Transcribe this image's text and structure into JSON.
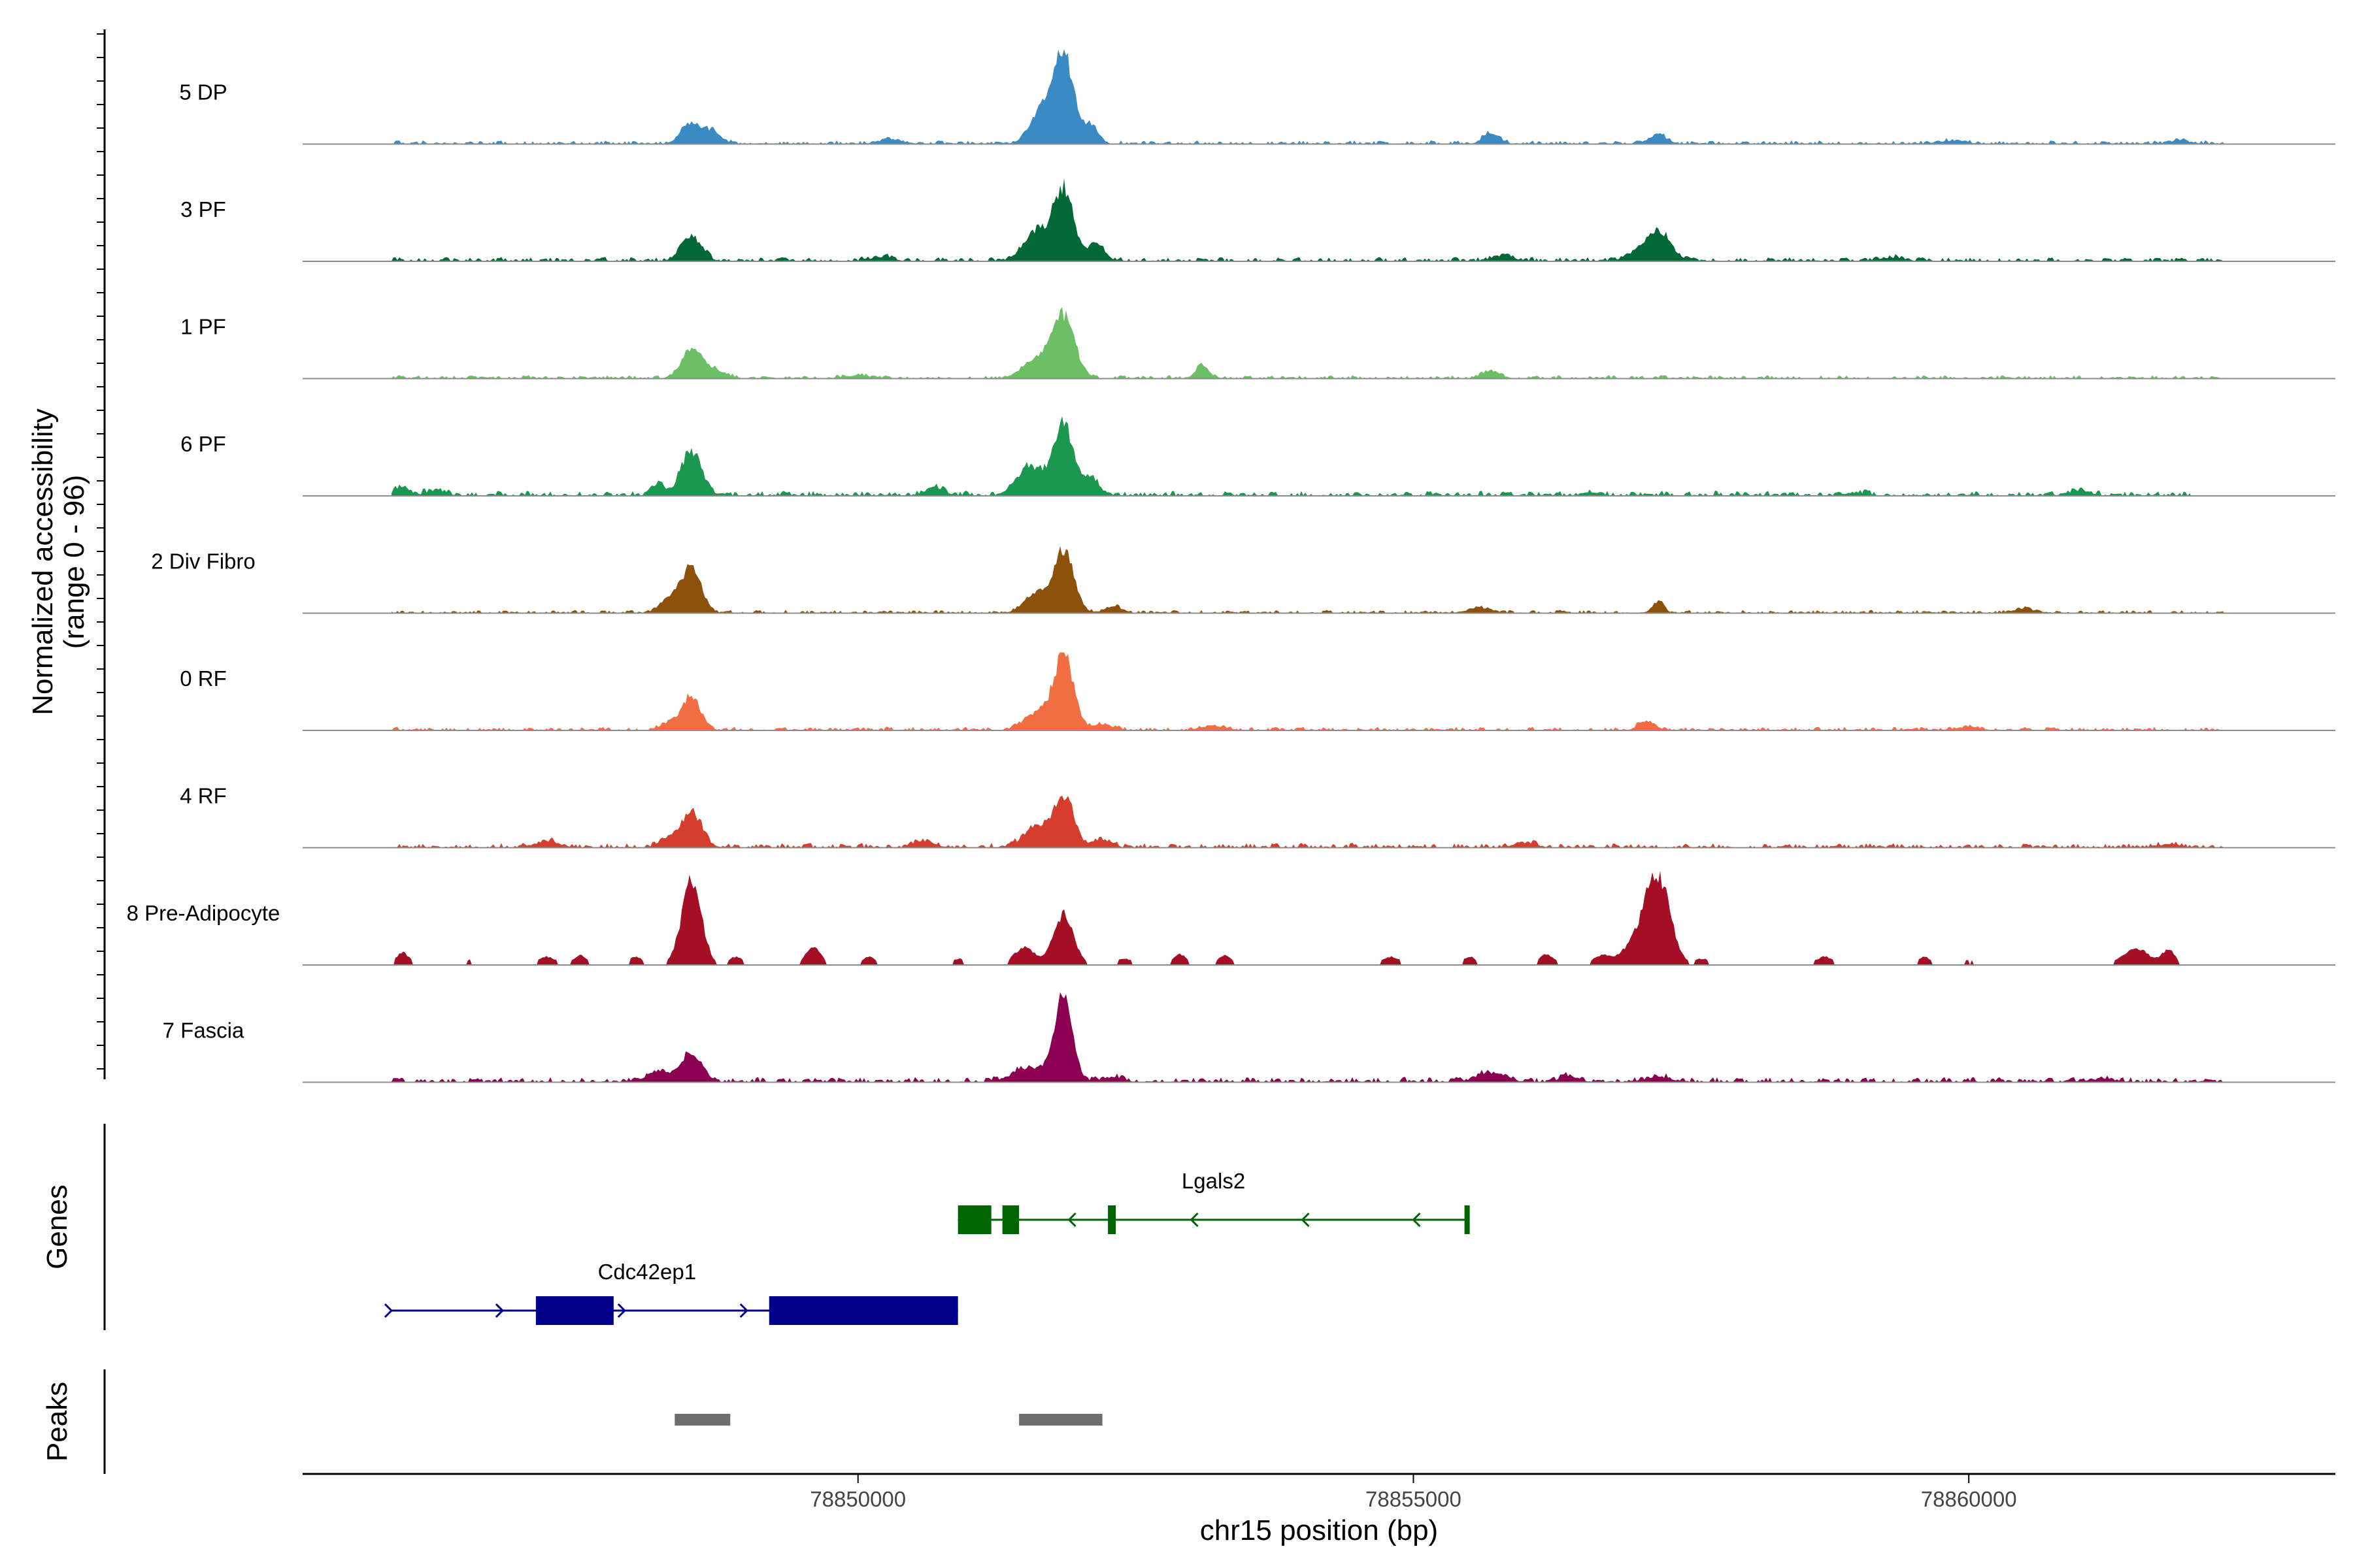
{
  "chart_data": {
    "type": "area",
    "title": "",
    "region": {
      "chrom": "chr15",
      "start": 78845000,
      "end": 78863300
    },
    "xlabel": "chr15 position (bp)",
    "xticks": [
      78850000,
      78855000,
      78860000
    ],
    "xtick_labels": [
      "78850000",
      "78855000",
      "78860000"
    ],
    "ylabel_line1": "Normalized accessibility",
    "ylabel_line2": "(range 0 - 96)",
    "ylim": [
      0,
      96
    ],
    "grid": false,
    "tracks_label": "Genes",
    "peaks_label": "Peaks",
    "series": [
      {
        "name": "5 DP",
        "color": "#3a8ac4",
        "background": 1.8,
        "x_extent": [
          78845800,
          78862300
        ],
        "peaks": [
          [
            78848500,
            20,
            90
          ],
          [
            78848700,
            11,
            70
          ],
          [
            78851850,
            88,
            90
          ],
          [
            78851650,
            30,
            100
          ],
          [
            78852100,
            18,
            60
          ],
          [
            78850300,
            4,
            100
          ],
          [
            78855700,
            11,
            70
          ],
          [
            78857200,
            9,
            80
          ],
          [
            78859850,
            3,
            120
          ],
          [
            78861900,
            3,
            100
          ]
        ]
      },
      {
        "name": "3 PF",
        "color": "#016837",
        "background": 2.2,
        "x_extent": [
          78845800,
          78862300
        ],
        "peaks": [
          [
            78848500,
            24,
            90
          ],
          [
            78851850,
            70,
            90
          ],
          [
            78851600,
            28,
            110
          ],
          [
            78852150,
            16,
            70
          ],
          [
            78850200,
            4,
            100
          ],
          [
            78855800,
            5,
            100
          ],
          [
            78857200,
            28,
            110
          ],
          [
            78857000,
            6,
            100
          ],
          [
            78859300,
            3,
            120
          ]
        ]
      },
      {
        "name": "1 PF",
        "color": "#6cbf65",
        "background": 1.8,
        "x_extent": [
          78845800,
          78862300
        ],
        "peaks": [
          [
            78848500,
            28,
            90
          ],
          [
            78848700,
            8,
            100
          ],
          [
            78851850,
            60,
            100
          ],
          [
            78851600,
            18,
            120
          ],
          [
            78853100,
            12,
            60
          ],
          [
            78855700,
            7,
            80
          ],
          [
            78850000,
            3,
            120
          ]
        ]
      },
      {
        "name": "6 PF",
        "color": "#1c9750",
        "background": 2.6,
        "x_extent": [
          78845800,
          78862000
        ],
        "peaks": [
          [
            78848500,
            44,
            90
          ],
          [
            78848200,
            10,
            60
          ],
          [
            78851850,
            70,
            90
          ],
          [
            78851550,
            28,
            120
          ],
          [
            78852100,
            16,
            70
          ],
          [
            78845900,
            8,
            60
          ],
          [
            78846200,
            5,
            80
          ],
          [
            78850700,
            8,
            80
          ],
          [
            78856600,
            3,
            80
          ],
          [
            78859000,
            3,
            80
          ],
          [
            78861000,
            5,
            80
          ]
        ]
      },
      {
        "name": "2 Div Fibro",
        "color": "#8c510a",
        "background": 1.6,
        "x_extent": [
          78845800,
          78862300
        ],
        "peaks": [
          [
            78848500,
            44,
            90
          ],
          [
            78848300,
            14,
            80
          ],
          [
            78851850,
            60,
            90
          ],
          [
            78851600,
            18,
            100
          ],
          [
            78852300,
            6,
            80
          ],
          [
            78855600,
            5,
            100
          ],
          [
            78857200,
            11,
            50
          ],
          [
            78860500,
            4,
            100
          ]
        ]
      },
      {
        "name": "0 RF",
        "color": "#f16d42",
        "background": 1.8,
        "x_extent": [
          78845800,
          78862300
        ],
        "peaks": [
          [
            78848500,
            34,
            80
          ],
          [
            78848300,
            7,
            80
          ],
          [
            78851850,
            72,
            90
          ],
          [
            78851600,
            16,
            110
          ],
          [
            78852200,
            6,
            80
          ],
          [
            78853200,
            4,
            100
          ],
          [
            78857100,
            9,
            70
          ],
          [
            78860000,
            3,
            100
          ]
        ]
      },
      {
        "name": "4 RF",
        "color": "#d53e2d",
        "background": 2.4,
        "x_extent": [
          78845800,
          78862300
        ],
        "peaks": [
          [
            78848500,
            34,
            90
          ],
          [
            78848300,
            8,
            80
          ],
          [
            78847200,
            6,
            100
          ],
          [
            78851850,
            48,
            90
          ],
          [
            78851600,
            20,
            110
          ],
          [
            78852200,
            8,
            80
          ],
          [
            78850600,
            6,
            90
          ],
          [
            78856000,
            4,
            100
          ],
          [
            78861800,
            3,
            100
          ]
        ]
      },
      {
        "name": "8 Pre-Adipocyte",
        "color": "#a50f25",
        "background": 0,
        "x_extent": [
          78845800,
          78862300
        ],
        "peaks": [
          [
            78848500,
            80,
            90
          ],
          [
            78851850,
            50,
            90
          ],
          [
            78851500,
            18,
            90
          ],
          [
            78857200,
            84,
            110
          ],
          [
            78857000,
            20,
            120
          ],
          [
            78845900,
            12,
            60
          ],
          [
            78846500,
            5,
            40
          ],
          [
            78847200,
            8,
            80
          ],
          [
            78847500,
            10,
            60
          ],
          [
            78848000,
            8,
            60
          ],
          [
            78848900,
            8,
            60
          ],
          [
            78849600,
            17,
            70
          ],
          [
            78850100,
            8,
            60
          ],
          [
            78850900,
            6,
            70
          ],
          [
            78852400,
            6,
            80
          ],
          [
            78852900,
            10,
            60
          ],
          [
            78853300,
            9,
            60
          ],
          [
            78854800,
            8,
            80
          ],
          [
            78855500,
            8,
            60
          ],
          [
            78856200,
            10,
            70
          ],
          [
            78856700,
            9,
            80
          ],
          [
            78857600,
            6,
            60
          ],
          [
            78858700,
            8,
            80
          ],
          [
            78859600,
            8,
            60
          ],
          [
            78860000,
            5,
            60
          ],
          [
            78861500,
            16,
            120
          ],
          [
            78861800,
            14,
            60
          ]
        ]
      },
      {
        "name": "7 Fascia",
        "color": "#8b0051",
        "background": 2.6,
        "x_extent": [
          78845800,
          78862300
        ],
        "peaks": [
          [
            78848500,
            28,
            90
          ],
          [
            78848200,
            10,
            100
          ],
          [
            78851850,
            82,
            80
          ],
          [
            78851550,
            14,
            150
          ],
          [
            78852300,
            5,
            80
          ],
          [
            78855700,
            9,
            120
          ],
          [
            78856400,
            6,
            80
          ],
          [
            78857200,
            5,
            100
          ],
          [
            78861200,
            3,
            100
          ]
        ]
      }
    ],
    "genes": [
      {
        "name": "Cdc42ep1",
        "color": "#00008b",
        "strand": "+",
        "start": 78845800,
        "end": 78850900,
        "exons": [
          [
            78847100,
            78847800
          ],
          [
            78849200,
            78850900
          ]
        ],
        "row": 2,
        "arrows": [
          78845800,
          78846800,
          78847900,
          78849000
        ]
      },
      {
        "name": "Lgals2",
        "color": "#006400",
        "strand": "-",
        "start": 78850900,
        "end": 78855500,
        "exons": [
          [
            78850900,
            78851200
          ],
          [
            78851300,
            78851450
          ],
          [
            78852250,
            78852320
          ],
          [
            78855460,
            78855500
          ]
        ],
        "row": 1,
        "arrows": [
          78851900,
          78853000,
          78854000,
          78855000
        ]
      }
    ],
    "peaks": [
      [
        78848350,
        78848850
      ],
      [
        78851450,
        78852200
      ]
    ],
    "peak_color": "#6e6e6e"
  }
}
